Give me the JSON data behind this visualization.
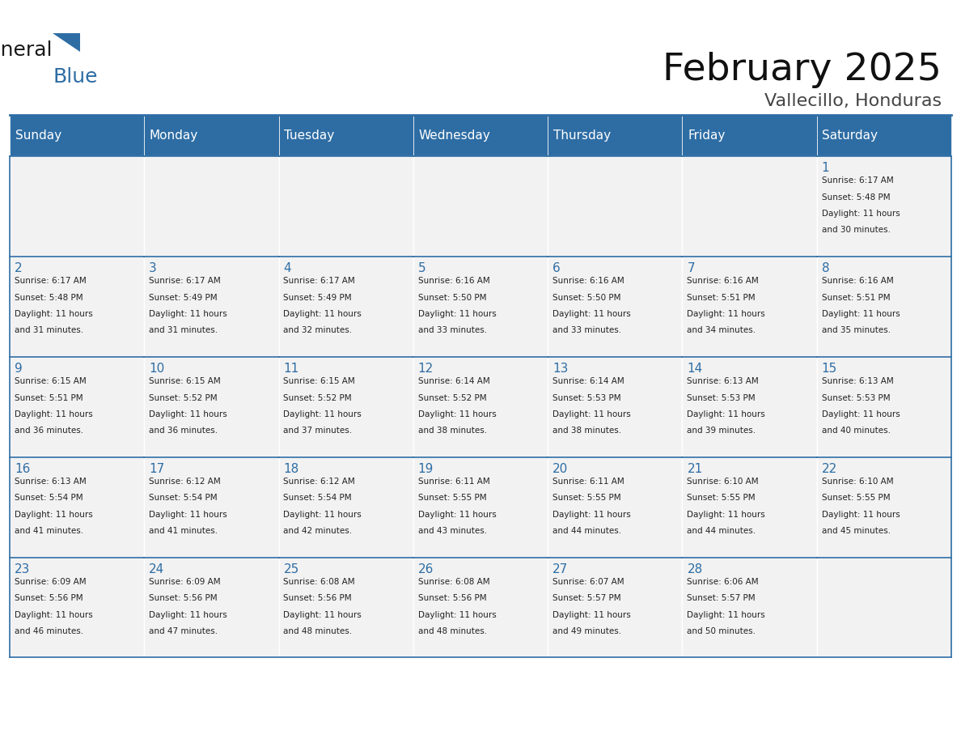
{
  "title": "February 2025",
  "subtitle": "Vallecillo, Honduras",
  "days_of_week": [
    "Sunday",
    "Monday",
    "Tuesday",
    "Wednesday",
    "Thursday",
    "Friday",
    "Saturday"
  ],
  "header_bg": "#2E6DA4",
  "header_text": "#FFFFFF",
  "cell_bg": "#F2F2F2",
  "cell_bg_alt": "#FFFFFF",
  "day_num_color": "#2E6DA4",
  "text_color": "#333333",
  "line_color": "#2E6DA4",
  "weeks": [
    [
      {
        "day": null,
        "sunrise": null,
        "sunset": null,
        "daylight": null
      },
      {
        "day": null,
        "sunrise": null,
        "sunset": null,
        "daylight": null
      },
      {
        "day": null,
        "sunrise": null,
        "sunset": null,
        "daylight": null
      },
      {
        "day": null,
        "sunrise": null,
        "sunset": null,
        "daylight": null
      },
      {
        "day": null,
        "sunrise": null,
        "sunset": null,
        "daylight": null
      },
      {
        "day": null,
        "sunrise": null,
        "sunset": null,
        "daylight": null
      },
      {
        "day": 1,
        "sunrise": "6:17 AM",
        "sunset": "5:48 PM",
        "daylight": "11 hours\nand 30 minutes."
      }
    ],
    [
      {
        "day": 2,
        "sunrise": "6:17 AM",
        "sunset": "5:48 PM",
        "daylight": "11 hours\nand 31 minutes."
      },
      {
        "day": 3,
        "sunrise": "6:17 AM",
        "sunset": "5:49 PM",
        "daylight": "11 hours\nand 31 minutes."
      },
      {
        "day": 4,
        "sunrise": "6:17 AM",
        "sunset": "5:49 PM",
        "daylight": "11 hours\nand 32 minutes."
      },
      {
        "day": 5,
        "sunrise": "6:16 AM",
        "sunset": "5:50 PM",
        "daylight": "11 hours\nand 33 minutes."
      },
      {
        "day": 6,
        "sunrise": "6:16 AM",
        "sunset": "5:50 PM",
        "daylight": "11 hours\nand 33 minutes."
      },
      {
        "day": 7,
        "sunrise": "6:16 AM",
        "sunset": "5:51 PM",
        "daylight": "11 hours\nand 34 minutes."
      },
      {
        "day": 8,
        "sunrise": "6:16 AM",
        "sunset": "5:51 PM",
        "daylight": "11 hours\nand 35 minutes."
      }
    ],
    [
      {
        "day": 9,
        "sunrise": "6:15 AM",
        "sunset": "5:51 PM",
        "daylight": "11 hours\nand 36 minutes."
      },
      {
        "day": 10,
        "sunrise": "6:15 AM",
        "sunset": "5:52 PM",
        "daylight": "11 hours\nand 36 minutes."
      },
      {
        "day": 11,
        "sunrise": "6:15 AM",
        "sunset": "5:52 PM",
        "daylight": "11 hours\nand 37 minutes."
      },
      {
        "day": 12,
        "sunrise": "6:14 AM",
        "sunset": "5:52 PM",
        "daylight": "11 hours\nand 38 minutes."
      },
      {
        "day": 13,
        "sunrise": "6:14 AM",
        "sunset": "5:53 PM",
        "daylight": "11 hours\nand 38 minutes."
      },
      {
        "day": 14,
        "sunrise": "6:13 AM",
        "sunset": "5:53 PM",
        "daylight": "11 hours\nand 39 minutes."
      },
      {
        "day": 15,
        "sunrise": "6:13 AM",
        "sunset": "5:53 PM",
        "daylight": "11 hours\nand 40 minutes."
      }
    ],
    [
      {
        "day": 16,
        "sunrise": "6:13 AM",
        "sunset": "5:54 PM",
        "daylight": "11 hours\nand 41 minutes."
      },
      {
        "day": 17,
        "sunrise": "6:12 AM",
        "sunset": "5:54 PM",
        "daylight": "11 hours\nand 41 minutes."
      },
      {
        "day": 18,
        "sunrise": "6:12 AM",
        "sunset": "5:54 PM",
        "daylight": "11 hours\nand 42 minutes."
      },
      {
        "day": 19,
        "sunrise": "6:11 AM",
        "sunset": "5:55 PM",
        "daylight": "11 hours\nand 43 minutes."
      },
      {
        "day": 20,
        "sunrise": "6:11 AM",
        "sunset": "5:55 PM",
        "daylight": "11 hours\nand 44 minutes."
      },
      {
        "day": 21,
        "sunrise": "6:10 AM",
        "sunset": "5:55 PM",
        "daylight": "11 hours\nand 44 minutes."
      },
      {
        "day": 22,
        "sunrise": "6:10 AM",
        "sunset": "5:55 PM",
        "daylight": "11 hours\nand 45 minutes."
      }
    ],
    [
      {
        "day": 23,
        "sunrise": "6:09 AM",
        "sunset": "5:56 PM",
        "daylight": "11 hours\nand 46 minutes."
      },
      {
        "day": 24,
        "sunrise": "6:09 AM",
        "sunset": "5:56 PM",
        "daylight": "11 hours\nand 47 minutes."
      },
      {
        "day": 25,
        "sunrise": "6:08 AM",
        "sunset": "5:56 PM",
        "daylight": "11 hours\nand 48 minutes."
      },
      {
        "day": 26,
        "sunrise": "6:08 AM",
        "sunset": "5:56 PM",
        "daylight": "11 hours\nand 48 minutes."
      },
      {
        "day": 27,
        "sunrise": "6:07 AM",
        "sunset": "5:57 PM",
        "daylight": "11 hours\nand 49 minutes."
      },
      {
        "day": 28,
        "sunrise": "6:06 AM",
        "sunset": "5:57 PM",
        "daylight": "11 hours\nand 50 minutes."
      },
      {
        "day": null,
        "sunrise": null,
        "sunset": null,
        "daylight": null
      }
    ]
  ],
  "logo_text1": "General",
  "logo_text2": "Blue",
  "logo_color1": "#1a1a1a",
  "logo_color2": "#2E6DA4",
  "logo_triangle_color": "#2E6DA4"
}
